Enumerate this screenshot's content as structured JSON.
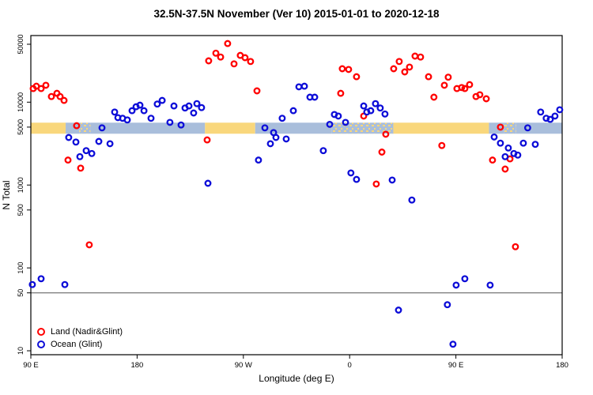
{
  "chart_data": {
    "type": "scatter",
    "title": "32.5N-37.5N November (Ver 10)   2015-01-01 to 2020-12-18",
    "xlabel": "Longitude (deg E)",
    "ylabel": "N Total",
    "x_axis": {
      "min": 90,
      "max": 540,
      "note": "longitude wraps eastward 90E to 180 to 90W to 0 to 90E to 180",
      "ticks": [
        {
          "v": 90,
          "label": "90 E"
        },
        {
          "v": 180,
          "label": "180"
        },
        {
          "v": 270,
          "label": "90 W"
        },
        {
          "v": 360,
          "label": "0"
        },
        {
          "v": 450,
          "label": "90 E"
        },
        {
          "v": 540,
          "label": "180"
        }
      ]
    },
    "y_axis": {
      "scale": "log",
      "min": 10,
      "max": 65000,
      "ticks": [
        {
          "v": 10,
          "label": "10"
        },
        {
          "v": 50,
          "label": "50"
        },
        {
          "v": 100,
          "label": "100"
        },
        {
          "v": 500,
          "label": "500"
        },
        {
          "v": 1000,
          "label": "1000"
        },
        {
          "v": 5000,
          "label": "5000"
        },
        {
          "v": 10000,
          "label": "10000"
        },
        {
          "v": 50000,
          "label": "50000"
        }
      ]
    },
    "reference_line_y": 50,
    "land_ocean_strip": {
      "center_n": 4850,
      "land_color": "#F9D77C",
      "ocean_color": "#A9BEDB",
      "segments": [
        [
          90,
          119.5,
          "land"
        ],
        [
          119.5,
          131,
          "ocean"
        ],
        [
          131,
          140.5,
          "mixed"
        ],
        [
          140.5,
          237.5,
          "ocean"
        ],
        [
          237.5,
          280,
          "land"
        ],
        [
          280,
          345,
          "ocean"
        ],
        [
          345,
          397,
          "mixed"
        ],
        [
          397,
          478,
          "land"
        ],
        [
          478,
          491,
          "ocean"
        ],
        [
          491,
          501,
          "mixed"
        ],
        [
          501,
          540,
          "ocean"
        ]
      ]
    },
    "legend_position": "bottom-left",
    "points_format": [
      "longitude_deg_east",
      "n_total"
    ],
    "series": [
      {
        "name": "Land (Nadir&Glint)",
        "color": "#FF0000",
        "marker": "open-circle",
        "points": [
          [
            92.0,
            14600
          ],
          [
            94.7,
            15600
          ],
          [
            98.7,
            14600
          ],
          [
            102.7,
            16000
          ],
          [
            107.4,
            11700
          ],
          [
            112.1,
            12800
          ],
          [
            114.8,
            11700
          ],
          [
            118.1,
            10500
          ],
          [
            121.5,
            2000
          ],
          [
            128.8,
            5200
          ],
          [
            132.2,
            1600
          ],
          [
            139.5,
            190
          ],
          [
            239.3,
            3500
          ],
          [
            240.6,
            31500
          ],
          [
            246.7,
            39000
          ],
          [
            250.7,
            35000
          ],
          [
            256.7,
            51000
          ],
          [
            262.1,
            29000
          ],
          [
            267.4,
            36700
          ],
          [
            271.4,
            34400
          ],
          [
            276.1,
            31000
          ],
          [
            281.5,
            13700
          ],
          [
            352.4,
            12800
          ],
          [
            353.8,
            25300
          ],
          [
            359.1,
            24800
          ],
          [
            365.8,
            20300
          ],
          [
            371.9,
            6800
          ],
          [
            382.6,
            1030
          ],
          [
            387.3,
            2500
          ],
          [
            390.6,
            4100
          ],
          [
            397.3,
            25300
          ],
          [
            402.0,
            31000
          ],
          [
            406.7,
            23200
          ],
          [
            410.7,
            26500
          ],
          [
            415.4,
            36000
          ],
          [
            420.1,
            35000
          ],
          [
            426.8,
            20300
          ],
          [
            431.4,
            11500
          ],
          [
            438.1,
            3000
          ],
          [
            440.2,
            16000
          ],
          [
            443.5,
            20000
          ],
          [
            450.9,
            14600
          ],
          [
            454.9,
            15000
          ],
          [
            457.6,
            14600
          ],
          [
            461.6,
            16300
          ],
          [
            467.0,
            11700
          ],
          [
            470.3,
            12300
          ],
          [
            475.7,
            11000
          ],
          [
            481.0,
            2000
          ],
          [
            487.7,
            5000
          ],
          [
            491.7,
            1560
          ],
          [
            495.8,
            2070
          ],
          [
            500.4,
            180
          ]
        ]
      },
      {
        "name": "Ocean (Glint)",
        "color": "#0D0DD8",
        "marker": "open-circle",
        "points": [
          [
            91.3,
            63
          ],
          [
            98.7,
            74
          ],
          [
            118.8,
            63
          ],
          [
            122.1,
            3750
          ],
          [
            128.2,
            3300
          ],
          [
            131.5,
            2200
          ],
          [
            136.9,
            2600
          ],
          [
            141.6,
            2400
          ],
          [
            147.6,
            3360
          ],
          [
            150.3,
            4900
          ],
          [
            157.0,
            3150
          ],
          [
            161.0,
            7600
          ],
          [
            163.7,
            6500
          ],
          [
            167.7,
            6400
          ],
          [
            171.7,
            6100
          ],
          [
            175.7,
            7900
          ],
          [
            179.1,
            8800
          ],
          [
            182.4,
            9200
          ],
          [
            185.8,
            7900
          ],
          [
            191.8,
            6400
          ],
          [
            197.1,
            9500
          ],
          [
            201.2,
            10500
          ],
          [
            207.8,
            5700
          ],
          [
            211.2,
            9000
          ],
          [
            217.2,
            5300
          ],
          [
            220.6,
            8500
          ],
          [
            223.9,
            9000
          ],
          [
            227.9,
            7400
          ],
          [
            230.6,
            9600
          ],
          [
            234.6,
            8600
          ],
          [
            240.0,
            1050
          ],
          [
            282.8,
            2000
          ],
          [
            288.2,
            4900
          ],
          [
            292.9,
            3150
          ],
          [
            295.6,
            4300
          ],
          [
            297.6,
            3750
          ],
          [
            302.9,
            6400
          ],
          [
            306.3,
            3600
          ],
          [
            312.3,
            7900
          ],
          [
            317.0,
            15300
          ],
          [
            321.7,
            15600
          ],
          [
            326.4,
            11500
          ],
          [
            330.4,
            11500
          ],
          [
            337.7,
            2600
          ],
          [
            343.1,
            5400
          ],
          [
            347.1,
            7100
          ],
          [
            350.4,
            6800
          ],
          [
            356.5,
            5700
          ],
          [
            361.1,
            1400
          ],
          [
            365.8,
            1170
          ],
          [
            371.9,
            9000
          ],
          [
            374.5,
            7600
          ],
          [
            377.9,
            7900
          ],
          [
            381.9,
            9600
          ],
          [
            385.9,
            8500
          ],
          [
            389.9,
            7200
          ],
          [
            396.0,
            1150
          ],
          [
            401.4,
            31
          ],
          [
            412.7,
            660
          ],
          [
            442.8,
            36
          ],
          [
            447.5,
            12
          ],
          [
            450.2,
            62
          ],
          [
            457.6,
            74
          ],
          [
            479.0,
            62
          ],
          [
            482.4,
            3800
          ],
          [
            487.7,
            3200
          ],
          [
            491.7,
            2200
          ],
          [
            494.4,
            2800
          ],
          [
            499.1,
            2400
          ],
          [
            502.4,
            2300
          ],
          [
            507.1,
            3200
          ],
          [
            510.8,
            4900
          ],
          [
            517.2,
            3100
          ],
          [
            521.8,
            7600
          ],
          [
            526.5,
            6400
          ],
          [
            529.9,
            6200
          ],
          [
            533.9,
            6800
          ],
          [
            537.9,
            8100
          ]
        ]
      }
    ]
  }
}
